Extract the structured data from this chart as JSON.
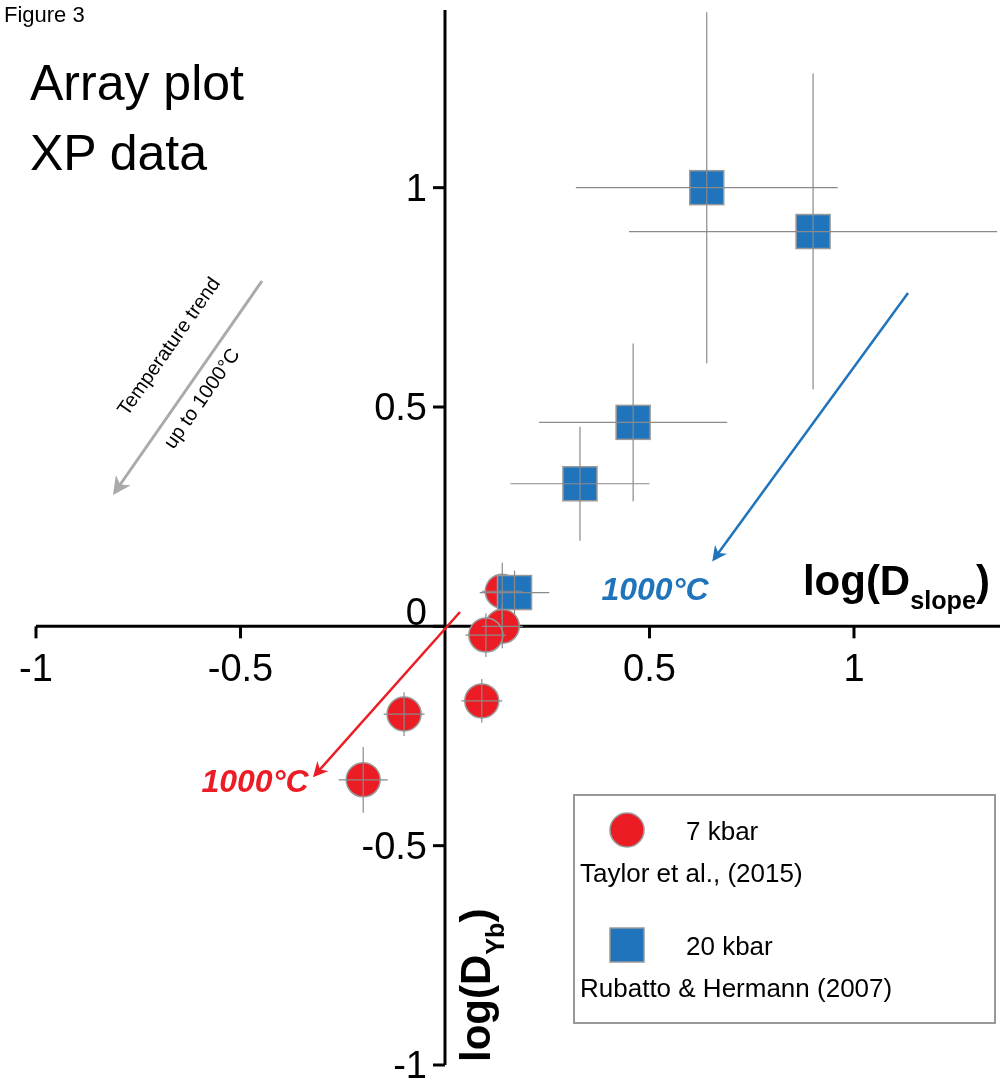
{
  "chart_data": {
    "type": "scatter",
    "title": "Array plot",
    "subtitle": "XP data",
    "xlabel": "log(D$_{slope}$)",
    "ylabel": "log(D$_{Yb}$)",
    "annotations": [
      "Figure 3",
      "Temperature trend",
      "up to 1000°C",
      "1000°C",
      "1000°C"
    ],
    "xlim": [
      -1,
      1.357
    ],
    "ylim": [
      -1,
      1.405
    ],
    "xticks": [
      -1,
      -0.5,
      0.5,
      1
    ],
    "yticks": [
      -1,
      -0.5,
      0,
      0.5,
      1
    ],
    "grid": false,
    "legend": "bottom right",
    "series": [
      {
        "name": "7 kbar\nTaylor et al., (2015)",
        "color": "#ec1c24",
        "marker": "circle",
        "x": [
          0.14,
          0.14,
          0.1,
          0.09,
          -0.1,
          -0.2
        ],
        "values": [
          0.08,
          0.0,
          -0.02,
          -0.17,
          -0.2,
          -0.35
        ],
        "errors": [
          0.065,
          0.05,
          0.05,
          0.05,
          0.05,
          0.075
        ],
        "xerrors": [
          0.05,
          0.05,
          0.05,
          0.05,
          0.05,
          0.06
        ]
      },
      {
        "name": "20 kbar\nRubatto & Hermann (2007)",
        "color": "#1f74bb",
        "marker": "square",
        "x": [
          0.17,
          0.33,
          0.46,
          0.64,
          0.9
        ],
        "values": [
          0.077,
          0.325,
          0.465,
          1.0,
          0.9
        ],
        "errors": [
          0.05,
          0.13,
          0.18,
          0.4,
          0.36
        ],
        "xerrors": [
          0.085,
          0.17,
          0.23,
          0.32,
          0.45
        ]
      }
    ]
  }
}
